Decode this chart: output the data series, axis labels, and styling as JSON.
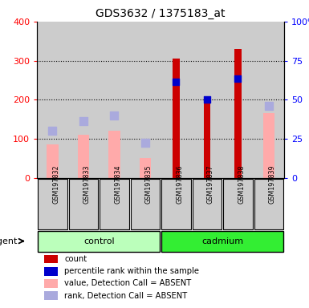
{
  "title": "GDS3632 / 1375183_at",
  "samples": [
    "GSM197832",
    "GSM197833",
    "GSM197834",
    "GSM197835",
    "GSM197836",
    "GSM197837",
    "GSM197838",
    "GSM197839"
  ],
  "count_values": [
    null,
    null,
    null,
    null,
    305,
    190,
    330,
    null
  ],
  "rank_values": [
    null,
    null,
    null,
    null,
    245,
    200,
    255,
    null
  ],
  "absent_value": [
    85,
    110,
    120,
    52,
    null,
    null,
    null,
    165
  ],
  "absent_rank": [
    120,
    145,
    160,
    90,
    null,
    null,
    null,
    185
  ],
  "ylim_left": [
    0,
    400
  ],
  "left_ticks": [
    0,
    100,
    200,
    300,
    400
  ],
  "right_ticks": [
    0,
    25,
    50,
    75,
    100
  ],
  "right_tick_labels": [
    "0",
    "25",
    "50",
    "75",
    "100%"
  ],
  "color_count": "#cc0000",
  "color_rank": "#0000cc",
  "color_absent_value": "#ffaaaa",
  "color_absent_rank": "#aaaadd",
  "color_control_bg": "#bbffbb",
  "color_cadmium_bg": "#33ee33",
  "color_sample_bg": "#cccccc",
  "group_control": "control",
  "group_cadmium": "cadmium",
  "legend_items": [
    {
      "label": "count",
      "color": "#cc0000"
    },
    {
      "label": "percentile rank within the sample",
      "color": "#0000cc"
    },
    {
      "label": "value, Detection Call = ABSENT",
      "color": "#ffaaaa"
    },
    {
      "label": "rank, Detection Call = ABSENT",
      "color": "#aaaadd"
    }
  ]
}
